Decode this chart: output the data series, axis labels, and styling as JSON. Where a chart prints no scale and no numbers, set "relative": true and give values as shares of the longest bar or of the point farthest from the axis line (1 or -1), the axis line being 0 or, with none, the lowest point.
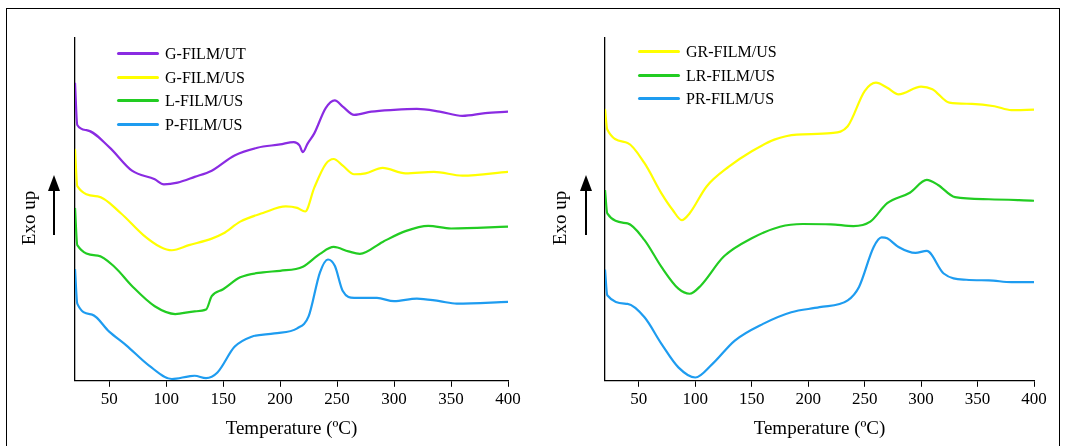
{
  "chart_data": [
    {
      "type": "line",
      "xlabel": "Temperature (ºC)",
      "ylabel": "Exo up",
      "relative": true,
      "xlim": [
        20,
        400
      ],
      "xticks": [
        50,
        100,
        150,
        200,
        250,
        300,
        350,
        400
      ],
      "legend": "top left",
      "grid": false,
      "marker": "none",
      "series": [
        {
          "name": "G-FILM/UT",
          "color": "#8a2be2",
          "x": [
            20,
            22,
            30,
            50,
            70,
            90,
            98,
            110,
            125,
            140,
            160,
            180,
            200,
            212,
            217,
            220,
            224,
            230,
            240,
            248,
            255,
            265,
            280,
            300,
            320,
            340,
            360,
            380,
            400
          ],
          "values": [
            1.0,
            0.858,
            0.841,
            0.784,
            0.705,
            0.676,
            0.659,
            0.665,
            0.684,
            0.705,
            0.756,
            0.782,
            0.793,
            0.801,
            0.79,
            0.767,
            0.795,
            0.83,
            0.915,
            0.941,
            0.92,
            0.892,
            0.903,
            0.909,
            0.912,
            0.903,
            0.889,
            0.898,
            0.903
          ]
        },
        {
          "name": "G-FILM/US",
          "color": "#ffff00",
          "x": [
            20,
            22,
            40,
            60,
            80,
            95,
            105,
            120,
            140,
            150,
            165,
            185,
            205,
            215,
            222,
            230,
            240,
            247,
            255,
            265,
            275,
            290,
            310,
            335,
            360,
            400
          ],
          "values": [
            0.778,
            0.653,
            0.619,
            0.563,
            0.489,
            0.449,
            0.438,
            0.455,
            0.477,
            0.494,
            0.534,
            0.563,
            0.585,
            0.58,
            0.568,
            0.648,
            0.727,
            0.744,
            0.722,
            0.693,
            0.696,
            0.714,
            0.696,
            0.701,
            0.688,
            0.701
          ]
        },
        {
          "name": "L-FILM/US",
          "color": "#22cc22",
          "x": [
            20,
            22,
            40,
            55,
            70,
            90,
            108,
            125,
            135,
            140,
            150,
            165,
            185,
            200,
            220,
            235,
            247,
            260,
            270,
            290,
            310,
            330,
            350,
            400
          ],
          "values": [
            0.58,
            0.455,
            0.42,
            0.381,
            0.318,
            0.25,
            0.224,
            0.233,
            0.239,
            0.284,
            0.307,
            0.347,
            0.364,
            0.369,
            0.383,
            0.426,
            0.449,
            0.434,
            0.426,
            0.466,
            0.502,
            0.52,
            0.511,
            0.517
          ]
        },
        {
          "name": "P-FILM/US",
          "color": "#1e9cf0",
          "x": [
            20,
            22,
            35,
            50,
            65,
            85,
            105,
            120,
            125,
            135,
            145,
            160,
            175,
            195,
            215,
            225,
            235,
            242,
            248,
            255,
            265,
            285,
            300,
            320,
            340,
            355,
            400
          ],
          "values": [
            0.375,
            0.259,
            0.222,
            0.165,
            0.119,
            0.051,
            0.006,
            0.015,
            0.017,
            0.009,
            0.028,
            0.114,
            0.148,
            0.159,
            0.176,
            0.216,
            0.364,
            0.407,
            0.386,
            0.301,
            0.278,
            0.278,
            0.267,
            0.276,
            0.267,
            0.259,
            0.265
          ]
        }
      ]
    },
    {
      "type": "line",
      "xlabel": "Temperature (ºC)",
      "ylabel": "Exo up",
      "relative": true,
      "xlim": [
        20,
        400
      ],
      "xticks": [
        50,
        100,
        150,
        200,
        250,
        300,
        350,
        400
      ],
      "legend": "top left",
      "grid": false,
      "marker": "none",
      "series": [
        {
          "name": "GR-FILM/US",
          "color": "#ffff00",
          "x": [
            20,
            22,
            40,
            55,
            70,
            80,
            88,
            95,
            110,
            130,
            150,
            170,
            190,
            220,
            235,
            250,
            260,
            270,
            280,
            300,
            310,
            325,
            345,
            365,
            380,
            400
          ],
          "values": [
            0.912,
            0.843,
            0.798,
            0.73,
            0.629,
            0.573,
            0.539,
            0.562,
            0.652,
            0.719,
            0.77,
            0.809,
            0.826,
            0.831,
            0.854,
            0.972,
            1.0,
            0.983,
            0.961,
            0.987,
            0.978,
            0.933,
            0.929,
            0.921,
            0.908,
            0.91
          ]
        },
        {
          "name": "LR-FILM/US",
          "color": "#22cc22",
          "x": [
            20,
            22,
            40,
            55,
            70,
            85,
            95,
            105,
            125,
            150,
            175,
            195,
            220,
            240,
            255,
            270,
            290,
            305,
            315,
            330,
            360,
            400
          ],
          "values": [
            0.64,
            0.562,
            0.528,
            0.472,
            0.382,
            0.309,
            0.292,
            0.32,
            0.416,
            0.478,
            0.517,
            0.526,
            0.525,
            0.519,
            0.534,
            0.596,
            0.631,
            0.674,
            0.657,
            0.616,
            0.609,
            0.604
          ]
        },
        {
          "name": "PR-FILM/US",
          "color": "#1e9cf0",
          "x": [
            20,
            22,
            40,
            55,
            70,
            85,
            100,
            115,
            135,
            160,
            185,
            210,
            235,
            245,
            258,
            265,
            270,
            280,
            295,
            305,
            320,
            340,
            360,
            380,
            400
          ],
          "values": [
            0.373,
            0.287,
            0.258,
            0.213,
            0.124,
            0.045,
            0.011,
            0.056,
            0.135,
            0.191,
            0.23,
            0.247,
            0.27,
            0.315,
            0.449,
            0.481,
            0.478,
            0.449,
            0.429,
            0.436,
            0.36,
            0.339,
            0.337,
            0.331,
            0.331
          ]
        }
      ]
    }
  ]
}
